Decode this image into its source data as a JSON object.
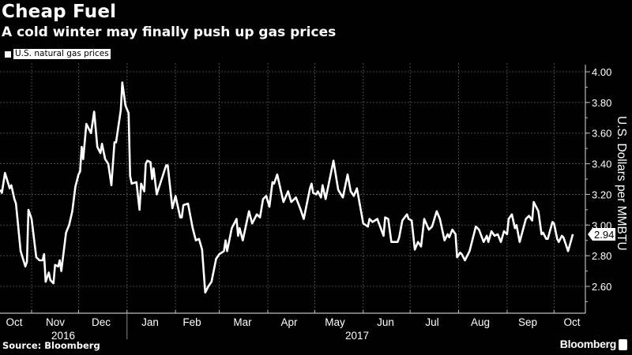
{
  "header": {
    "title": "Cheap Fuel",
    "subtitle": "A cold winter may finally push up gas prices"
  },
  "footer": {
    "source": "Source: Bloomberg",
    "brand": "Bloomberg"
  },
  "chart_data": {
    "type": "line",
    "title": "Cheap Fuel",
    "subtitle": "A cold winter may finally push up gas prices",
    "ylabel": "U.S. Dollars per MMBTU",
    "xlabel": "",
    "ylim": [
      2.5,
      4.05
    ],
    "yticks": [
      "4.00",
      "3.80",
      "3.60",
      "3.40",
      "3.20",
      "3.00",
      "2.80",
      "2.60"
    ],
    "xticks": [
      "Oct",
      "Nov",
      "Dec",
      "Jan",
      "Feb",
      "Mar",
      "Apr",
      "May",
      "Jun",
      "Jul",
      "Aug",
      "Sep",
      "Oct"
    ],
    "years": [
      "2016",
      "2017"
    ],
    "grid": true,
    "legend_position": "top-left",
    "last_value_label": "2.94",
    "colors": {
      "background": "#000000",
      "line": "#ffffff",
      "grid": "#555555"
    },
    "series": [
      {
        "name": "U.S. natural gas prices",
        "x": [
          "2016-10-12",
          "2016-10-13",
          "2016-10-15",
          "2016-10-18",
          "2016-10-19",
          "2016-10-21",
          "2016-10-22",
          "2016-10-25",
          "2016-10-28",
          "2016-10-29",
          "2016-10-30",
          "2016-11-01",
          "2016-11-04",
          "2016-11-06",
          "2016-11-08",
          "2016-11-09",
          "2016-11-10",
          "2016-11-12",
          "2016-11-13",
          "2016-11-15",
          "2016-11-16",
          "2016-11-18",
          "2016-11-19",
          "2016-11-20",
          "2016-11-23",
          "2016-11-25",
          "2016-11-27",
          "2016-11-29",
          "2016-12-01",
          "2016-12-02",
          "2016-12-03",
          "2016-12-04",
          "2016-12-06",
          "2016-12-09",
          "2016-12-11",
          "2016-12-13",
          "2016-12-15",
          "2016-12-16",
          "2016-12-18",
          "2016-12-20",
          "2016-12-22",
          "2016-12-24",
          "2016-12-25",
          "2016-12-28",
          "2016-12-29",
          "2016-12-31",
          "2017-01-02",
          "2017-01-03",
          "2017-01-04",
          "2017-01-07",
          "2017-01-09",
          "2017-01-10",
          "2017-01-12",
          "2017-01-13",
          "2017-01-14",
          "2017-01-16",
          "2017-01-17",
          "2017-01-18",
          "2017-01-20",
          "2017-01-26",
          "2017-01-27",
          "2017-01-30",
          "2017-02-01",
          "2017-02-04",
          "2017-02-05",
          "2017-02-06",
          "2017-02-09",
          "2017-02-12",
          "2017-02-14",
          "2017-02-16",
          "2017-02-18",
          "2017-02-20",
          "2017-02-22",
          "2017-02-24",
          "2017-02-27",
          "2017-03-01",
          "2017-03-04",
          "2017-03-05",
          "2017-03-06",
          "2017-03-09",
          "2017-03-12",
          "2017-03-13",
          "2017-03-14",
          "2017-03-16",
          "2017-03-20",
          "2017-03-22",
          "2017-03-25",
          "2017-03-27",
          "2017-03-29",
          "2017-03-31",
          "2017-04-02",
          "2017-04-04",
          "2017-04-05",
          "2017-04-07",
          "2017-04-11",
          "2017-04-14",
          "2017-04-16",
          "2017-04-19",
          "2017-04-22",
          "2017-04-24",
          "2017-04-28",
          "2017-04-29",
          "2017-04-30",
          "2017-05-02",
          "2017-05-03",
          "2017-05-05",
          "2017-05-06",
          "2017-05-08",
          "2017-05-13",
          "2017-05-16",
          "2017-05-19",
          "2017-05-22",
          "2017-05-24",
          "2017-05-26",
          "2017-05-28",
          "2017-06-01",
          "2017-06-04",
          "2017-06-05",
          "2017-06-07",
          "2017-06-10",
          "2017-06-14",
          "2017-06-15",
          "2017-06-17",
          "2017-06-19",
          "2017-06-23",
          "2017-06-24",
          "2017-06-26",
          "2017-06-29",
          "2017-06-30",
          "2017-07-02",
          "2017-07-04",
          "2017-07-06",
          "2017-07-08",
          "2017-07-10",
          "2017-07-13",
          "2017-07-15",
          "2017-07-18",
          "2017-07-20",
          "2017-07-23",
          "2017-07-25",
          "2017-07-26",
          "2017-07-28",
          "2017-07-30",
          "2017-07-31",
          "2017-08-02",
          "2017-08-03",
          "2017-08-05",
          "2017-08-08",
          "2017-08-12",
          "2017-08-14",
          "2017-08-17",
          "2017-08-19",
          "2017-08-20",
          "2017-08-22",
          "2017-08-24",
          "2017-08-26",
          "2017-08-28",
          "2017-08-30",
          "2017-09-01",
          "2017-09-02",
          "2017-09-04",
          "2017-09-06",
          "2017-09-07",
          "2017-09-09",
          "2017-09-13",
          "2017-09-15",
          "2017-09-17",
          "2017-09-18",
          "2017-09-21",
          "2017-09-23",
          "2017-09-24",
          "2017-09-26",
          "2017-09-27",
          "2017-09-30",
          "2017-10-01",
          "2017-10-03",
          "2017-10-04",
          "2017-10-06",
          "2017-10-07",
          "2017-10-10",
          "2017-10-13"
        ],
        "values": [
          3.23,
          3.21,
          3.34,
          3.24,
          3.26,
          3.17,
          3.14,
          2.83,
          2.73,
          2.76,
          3.1,
          3.04,
          2.79,
          2.77,
          2.77,
          2.81,
          2.63,
          2.69,
          2.64,
          2.62,
          2.74,
          2.73,
          2.77,
          2.7,
          2.95,
          3.0,
          3.09,
          3.25,
          3.33,
          3.35,
          3.51,
          3.43,
          3.66,
          3.6,
          3.74,
          3.51,
          3.47,
          3.53,
          3.43,
          3.4,
          3.26,
          3.54,
          3.54,
          3.75,
          3.93,
          3.78,
          3.73,
          3.32,
          3.27,
          3.28,
          3.1,
          3.27,
          3.22,
          3.4,
          3.42,
          3.41,
          3.3,
          3.37,
          3.2,
          3.39,
          3.39,
          3.11,
          3.19,
          3.05,
          3.05,
          3.13,
          3.14,
          2.98,
          2.9,
          2.91,
          2.84,
          2.56,
          2.6,
          2.63,
          2.78,
          2.81,
          2.83,
          2.9,
          2.83,
          2.98,
          3.04,
          2.93,
          2.98,
          2.9,
          3.09,
          3.01,
          3.07,
          3.05,
          3.17,
          3.19,
          3.12,
          3.28,
          3.27,
          3.33,
          3.15,
          3.22,
          3.15,
          3.18,
          3.1,
          3.04,
          3.24,
          3.27,
          3.21,
          3.2,
          3.22,
          3.18,
          3.26,
          3.17,
          3.42,
          3.23,
          3.18,
          3.33,
          3.22,
          3.19,
          3.24,
          3.01,
          2.99,
          3.04,
          3.02,
          3.04,
          2.93,
          3.05,
          3.04,
          2.89,
          2.89,
          2.92,
          3.03,
          3.07,
          3.04,
          3.03,
          2.84,
          2.89,
          2.86,
          3.04,
          2.97,
          2.99,
          3.09,
          3.04,
          2.9,
          2.94,
          2.92,
          2.97,
          2.94,
          2.79,
          2.82,
          2.81,
          2.77,
          2.83,
          2.99,
          2.97,
          2.89,
          2.93,
          2.89,
          2.96,
          2.93,
          2.94,
          2.89,
          2.96,
          2.94,
          3.04,
          3.07,
          2.98,
          3.0,
          2.89,
          3.04,
          3.06,
          3.03,
          3.15,
          3.09,
          2.94,
          2.95,
          2.91,
          2.91,
          3.02,
          3.01,
          2.91,
          2.89,
          2.93,
          2.92,
          2.83,
          2.94
        ]
      }
    ]
  }
}
